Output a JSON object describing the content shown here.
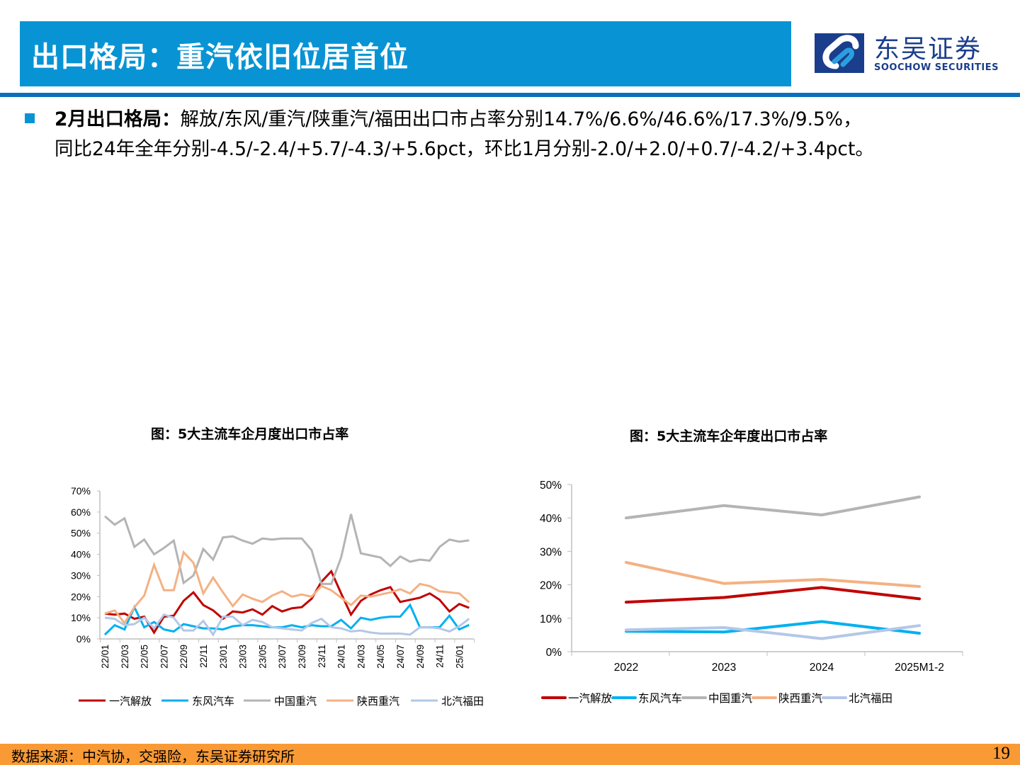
{
  "header": {
    "title": "出口格局：重汽依旧位居首位",
    "logo_cn": "东吴证券",
    "logo_en": "SOOCHOW SECURITIES"
  },
  "summary": {
    "bold_label": "2月出口格局：",
    "line1_rest": "解放/东风/重汽/陕重汽/福田出口市占率分别14.7%/6.6%/46.6%/17.3%/9.5%，",
    "line2": "同比24年全年分别-4.5/-2.4/+5.7/-4.3/+5.6pct，环比1月分别-2.0/+2.0/+0.7/-4.2/+3.4pct。"
  },
  "colors": {
    "title_bar": "#0894d4",
    "rule": "#0a6fbd",
    "footer": "#f99a35",
    "faw": "#c00000",
    "dongfeng": "#00b0f0",
    "sinotruk": "#b4b4b4",
    "shaanxi": "#f4b183",
    "foton": "#b4c7e7"
  },
  "chart_data": [
    {
      "type": "line",
      "title": "图：5大主流车企月度出口市占率",
      "xlabel": "",
      "ylabel": "",
      "ylim": [
        0,
        70
      ],
      "yticks": [
        "0%",
        "10%",
        "20%",
        "30%",
        "40%",
        "50%",
        "60%",
        "70%"
      ],
      "x": [
        "22/01",
        "22/02",
        "22/03",
        "22/04",
        "22/05",
        "22/06",
        "22/07",
        "22/08",
        "22/09",
        "22/10",
        "22/11",
        "22/12",
        "23/01",
        "23/02",
        "23/03",
        "23/04",
        "23/05",
        "23/06",
        "23/07",
        "23/08",
        "23/09",
        "23/10",
        "23/11",
        "23/12",
        "24/01",
        "24/02",
        "24/03",
        "24/04",
        "24/05",
        "24/06",
        "24/07",
        "24/08",
        "24/09",
        "24/10",
        "24/11",
        "24/12",
        "25/01",
        "25/02"
      ],
      "xtick_labels": [
        "22/01",
        "22/03",
        "22/05",
        "22/07",
        "22/09",
        "22/11",
        "23/01",
        "23/03",
        "23/05",
        "23/07",
        "23/09",
        "23/11",
        "24/01",
        "24/03",
        "24/05",
        "24/07",
        "24/09",
        "24/11",
        "25/01"
      ],
      "legend_position": "bottom",
      "grid": false,
      "series": [
        {
          "name": "一汽解放",
          "color_key": "faw",
          "values": [
            12,
            11.5,
            12,
            9.5,
            10.5,
            3,
            10.5,
            11,
            18,
            22,
            16,
            13.5,
            9.5,
            13,
            12.5,
            14,
            11.5,
            15.5,
            13,
            14.5,
            15,
            19,
            27,
            32,
            21.5,
            11.5,
            18,
            21,
            23,
            24.5,
            17.5,
            18.5,
            19.5,
            21.5,
            18.5,
            13,
            16.5,
            14.7
          ]
        },
        {
          "name": "东风汽车",
          "color_key": "dongfeng",
          "values": [
            2,
            6.5,
            4.5,
            15,
            5.5,
            8,
            4.5,
            3.5,
            7,
            6,
            5,
            5,
            4.5,
            6,
            6.5,
            6.5,
            6,
            5.5,
            5.5,
            6.5,
            5.5,
            6.5,
            6,
            6,
            9,
            5,
            10,
            9,
            10,
            10.5,
            10.5,
            16,
            5.5,
            5.5,
            5.5,
            11,
            4.5,
            6.6
          ]
        },
        {
          "name": "中国重汽",
          "color_key": "sinotruk",
          "values": [
            58,
            54,
            57,
            43.5,
            47,
            40,
            43,
            46.5,
            26.5,
            30,
            42.5,
            37.5,
            48,
            48.5,
            46.5,
            45,
            47.5,
            47,
            47.5,
            47.5,
            47.5,
            42,
            26,
            26,
            38.5,
            59,
            40.5,
            39.5,
            38.5,
            34.5,
            39,
            36.5,
            37.5,
            37,
            43.5,
            47,
            46,
            46.6
          ]
        },
        {
          "name": "陕西重汽",
          "color_key": "shaanxi",
          "values": [
            12,
            13.5,
            7.5,
            15,
            20.5,
            35,
            23,
            23,
            41,
            36,
            21.5,
            29,
            22,
            15.5,
            21,
            19,
            17.5,
            20.5,
            22.5,
            20,
            21,
            20,
            25,
            23,
            19.5,
            16,
            20.5,
            20,
            21,
            22,
            23.5,
            21.5,
            26,
            25,
            22.5,
            22,
            21.5,
            17.3
          ]
        },
        {
          "name": "北汽福田",
          "color_key": "foton",
          "values": [
            10,
            9.5,
            6.5,
            7,
            10,
            5,
            11.5,
            10,
            4,
            4,
            8.5,
            2,
            10.5,
            10.5,
            6.5,
            9,
            8,
            5.5,
            5,
            4.5,
            4,
            7.5,
            9.5,
            5.5,
            5,
            3.5,
            4,
            3,
            2.5,
            2.5,
            2.5,
            2,
            5.5,
            5.5,
            5,
            3.5,
            6,
            9.5
          ]
        }
      ]
    },
    {
      "type": "line",
      "title": "图：5大主流车企年度出口市占率",
      "xlabel": "",
      "ylabel": "",
      "ylim": [
        0,
        50
      ],
      "yticks": [
        "0%",
        "10%",
        "20%",
        "30%",
        "40%",
        "50%"
      ],
      "categories": [
        "2022",
        "2023",
        "2024",
        "2025M1-2"
      ],
      "legend_position": "bottom",
      "grid": false,
      "series": [
        {
          "name": "一汽解放",
          "color_key": "faw",
          "values": [
            14.8,
            16.2,
            19.2,
            15.8
          ]
        },
        {
          "name": "东风汽车",
          "color_key": "dongfeng",
          "values": [
            6.1,
            5.9,
            9.0,
            5.5
          ]
        },
        {
          "name": "中国重汽",
          "color_key": "sinotruk",
          "values": [
            40.0,
            43.7,
            40.9,
            46.3
          ]
        },
        {
          "name": "陕西重汽",
          "color_key": "shaanxi",
          "values": [
            26.7,
            20.4,
            21.6,
            19.5
          ]
        },
        {
          "name": "北汽福田",
          "color_key": "foton",
          "values": [
            6.5,
            7.2,
            3.9,
            7.8
          ]
        }
      ]
    }
  ],
  "footer": {
    "source": "数据来源：中汽协，交强险，东吴证券研究所",
    "page_number": "19"
  }
}
